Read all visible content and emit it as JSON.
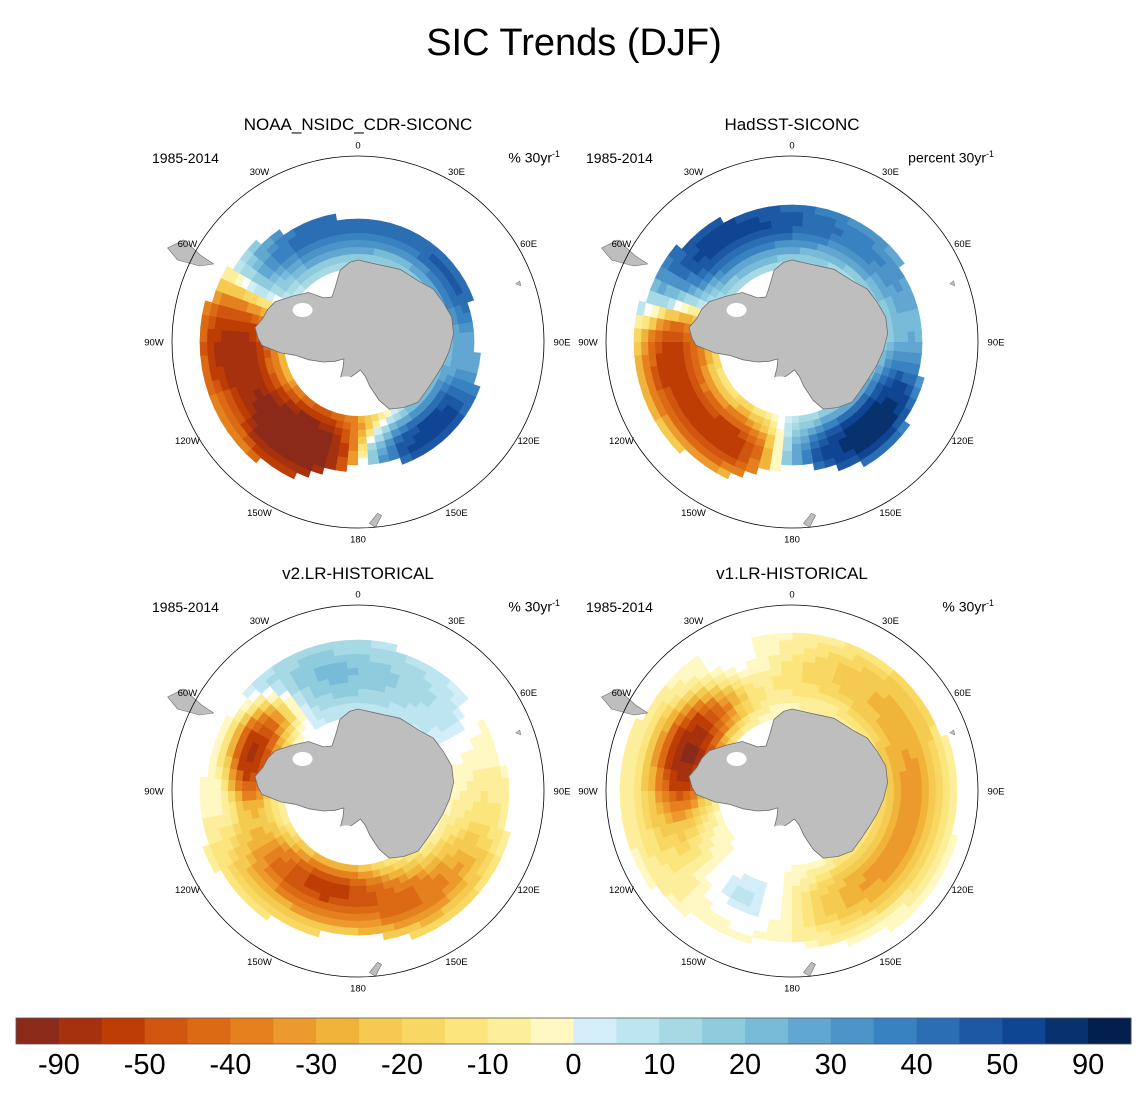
{
  "title": "SIC Trends (DJF)",
  "panels": [
    {
      "title": "NOAA_NSIDC_CDR-SICONC",
      "period": "1985-2014",
      "units_main": "% 30yr",
      "units_sup": "-1",
      "pattern": "obs_cdr"
    },
    {
      "title": "HadSST-SICONC",
      "period": "1985-2014",
      "units_main": "percent 30yr",
      "units_sup": "-1",
      "pattern": "obs_hadsst"
    },
    {
      "title": "v2.LR-HISTORICAL",
      "period": "1985-2014",
      "units_main": "% 30yr",
      "units_sup": "-1",
      "pattern": "model_v2"
    },
    {
      "title": "v1.LR-HISTORICAL",
      "period": "1985-2014",
      "units_main": "% 30yr",
      "units_sup": "-1",
      "pattern": "model_v1"
    }
  ],
  "longitude_labels": [
    "0",
    "30E",
    "60E",
    "90E",
    "120E",
    "150E",
    "180",
    "150W",
    "120W",
    "90W",
    "60W",
    "30W"
  ],
  "chart_data": {
    "type": "polar-stereographic filled contour maps",
    "projection": "South polar stereographic",
    "variable": "Sea ice concentration trend, December-February",
    "colorbar": {
      "tick_labels": [
        "-90",
        "-50",
        "-40",
        "-30",
        "-20",
        "-10",
        "0",
        "10",
        "20",
        "30",
        "40",
        "50",
        "90"
      ],
      "levels": [
        -90,
        -80,
        -70,
        -60,
        -50,
        -45,
        -40,
        -35,
        -30,
        -25,
        -20,
        -15,
        -10,
        -5,
        0,
        5,
        10,
        15,
        20,
        25,
        30,
        35,
        40,
        45,
        50,
        60,
        70,
        80,
        90
      ],
      "colors": [
        "#8c2a1a",
        "#a5310f",
        "#be3d05",
        "#d0560f",
        "#dc6a15",
        "#e5801e",
        "#ec9a2d",
        "#f1b43b",
        "#f5ca50",
        "#f8d862",
        "#fbe57c",
        "#fdee9b",
        "#fff8c2",
        "#d3eef8",
        "#bde5ef",
        "#a7d9e4",
        "#8ecbdd",
        "#78bbd8",
        "#62a7d1",
        "#4c94c8",
        "#3982c1",
        "#2c6eb4",
        "#1c58a4",
        "#0f4592",
        "#08326e",
        "#031f4e"
      ]
    }
  }
}
